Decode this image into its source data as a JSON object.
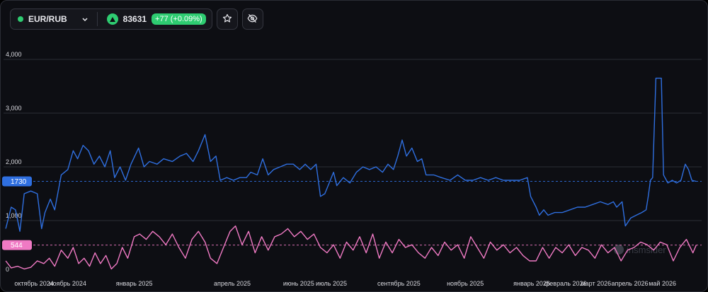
{
  "header": {
    "symbol": "EUR/RUB",
    "price": "83631",
    "change": "+77 (+0.09%)"
  },
  "watermark": "insmsider",
  "icons": [
    "chevron-down-icon",
    "arrow-up-icon",
    "star-icon",
    "eye-off-icon"
  ],
  "colors": {
    "series_blue": "#2f6fe0",
    "series_pink": "#f07ac4",
    "up_green": "#2ecc71",
    "background": "#0d0e13",
    "grid": "#2b2d36"
  },
  "chart_data": {
    "type": "line",
    "ylim": [
      0,
      4500
    ],
    "yticks": [
      "0",
      "1,000",
      "2,000",
      "3,000",
      "4,000"
    ],
    "ytick_values": [
      0,
      1000,
      2000,
      3000,
      4000
    ],
    "xlim": [
      "2024-09-03",
      "2026-06-06"
    ],
    "xticks": [
      {
        "label": "октябрь 2024",
        "date": "2024-10-01"
      },
      {
        "label": "ноябрь 2024",
        "date": "2024-11-01"
      },
      {
        "label": "январь 2025",
        "date": "2025-01-01"
      },
      {
        "label": "апрель 2025",
        "date": "2025-04-01"
      },
      {
        "label": "июнь 2025",
        "date": "2025-06-01"
      },
      {
        "label": "июль 2025",
        "date": "2025-07-01"
      },
      {
        "label": "сентябрь 2025",
        "date": "2025-09-01"
      },
      {
        "label": "ноябрь 2025",
        "date": "2025-11-01"
      },
      {
        "label": "январь 2026",
        "date": "2026-01-01"
      },
      {
        "label": "февраль 2026",
        "date": "2026-02-01"
      },
      {
        "label": "март 2026",
        "date": "2026-03-01"
      },
      {
        "label": "апрель 2026",
        "date": "2026-04-01"
      },
      {
        "label": "май 2026",
        "date": "2026-05-01"
      }
    ],
    "grid": true,
    "series": [
      {
        "color": "#2f6fe0",
        "last_value": 1730,
        "last_label": "1730",
        "points": [
          [
            "2024-09-05",
            850
          ],
          [
            "2024-09-10",
            1250
          ],
          [
            "2024-09-14",
            1200
          ],
          [
            "2024-09-18",
            800
          ],
          [
            "2024-09-22",
            1500
          ],
          [
            "2024-09-28",
            1550
          ],
          [
            "2024-10-04",
            1500
          ],
          [
            "2024-10-08",
            850
          ],
          [
            "2024-10-11",
            1150
          ],
          [
            "2024-10-16",
            1400
          ],
          [
            "2024-10-20",
            1200
          ],
          [
            "2024-10-26",
            1850
          ],
          [
            "2024-11-01",
            1950
          ],
          [
            "2024-11-06",
            2300
          ],
          [
            "2024-11-10",
            2150
          ],
          [
            "2024-11-15",
            2400
          ],
          [
            "2024-11-20",
            2300
          ],
          [
            "2024-11-25",
            2050
          ],
          [
            "2024-11-30",
            2200
          ],
          [
            "2024-12-05",
            2000
          ],
          [
            "2024-12-10",
            2300
          ],
          [
            "2024-12-14",
            1800
          ],
          [
            "2024-12-19",
            2000
          ],
          [
            "2024-12-24",
            1750
          ],
          [
            "2024-12-29",
            2050
          ],
          [
            "2025-01-05",
            2350
          ],
          [
            "2025-01-10",
            2000
          ],
          [
            "2025-01-15",
            2100
          ],
          [
            "2025-01-22",
            2050
          ],
          [
            "2025-01-28",
            2150
          ],
          [
            "2025-02-05",
            2100
          ],
          [
            "2025-02-12",
            2200
          ],
          [
            "2025-02-18",
            2250
          ],
          [
            "2025-02-24",
            2100
          ],
          [
            "2025-03-01",
            2300
          ],
          [
            "2025-03-07",
            2600
          ],
          [
            "2025-03-12",
            2100
          ],
          [
            "2025-03-17",
            2200
          ],
          [
            "2025-03-21",
            1750
          ],
          [
            "2025-03-27",
            1800
          ],
          [
            "2025-04-02",
            1750
          ],
          [
            "2025-04-08",
            1800
          ],
          [
            "2025-04-14",
            1800
          ],
          [
            "2025-04-18",
            1900
          ],
          [
            "2025-04-24",
            1850
          ],
          [
            "2025-04-29",
            2150
          ],
          [
            "2025-05-04",
            1850
          ],
          [
            "2025-05-09",
            1950
          ],
          [
            "2025-05-15",
            2000
          ],
          [
            "2025-05-21",
            2050
          ],
          [
            "2025-05-27",
            2050
          ],
          [
            "2025-06-02",
            1950
          ],
          [
            "2025-06-07",
            2050
          ],
          [
            "2025-06-12",
            1950
          ],
          [
            "2025-06-17",
            2050
          ],
          [
            "2025-06-21",
            1450
          ],
          [
            "2025-06-25",
            1500
          ],
          [
            "2025-06-30",
            1750
          ],
          [
            "2025-07-03",
            1900
          ],
          [
            "2025-07-06",
            1650
          ],
          [
            "2025-07-12",
            1800
          ],
          [
            "2025-07-18",
            1700
          ],
          [
            "2025-07-24",
            1900
          ],
          [
            "2025-07-30",
            2000
          ],
          [
            "2025-08-05",
            1950
          ],
          [
            "2025-08-11",
            2000
          ],
          [
            "2025-08-17",
            1900
          ],
          [
            "2025-08-22",
            2050
          ],
          [
            "2025-08-27",
            1950
          ],
          [
            "2025-08-31",
            2200
          ],
          [
            "2025-09-04",
            2500
          ],
          [
            "2025-09-08",
            2200
          ],
          [
            "2025-09-13",
            2350
          ],
          [
            "2025-09-18",
            2100
          ],
          [
            "2025-09-22",
            2150
          ],
          [
            "2025-09-26",
            1850
          ],
          [
            "2025-10-03",
            1850
          ],
          [
            "2025-10-10",
            1800
          ],
          [
            "2025-10-18",
            1750
          ],
          [
            "2025-10-25",
            1850
          ],
          [
            "2025-11-01",
            1750
          ],
          [
            "2025-11-08",
            1750
          ],
          [
            "2025-11-15",
            1800
          ],
          [
            "2025-11-22",
            1750
          ],
          [
            "2025-11-29",
            1800
          ],
          [
            "2025-12-06",
            1750
          ],
          [
            "2025-12-14",
            1750
          ],
          [
            "2025-12-21",
            1750
          ],
          [
            "2025-12-28",
            1800
          ],
          [
            "2025-12-31",
            1450
          ],
          [
            "2026-01-05",
            1250
          ],
          [
            "2026-01-08",
            1100
          ],
          [
            "2026-01-12",
            1200
          ],
          [
            "2026-01-16",
            1100
          ],
          [
            "2026-01-22",
            1150
          ],
          [
            "2026-01-29",
            1150
          ],
          [
            "2026-02-05",
            1200
          ],
          [
            "2026-02-12",
            1250
          ],
          [
            "2026-02-19",
            1250
          ],
          [
            "2026-02-26",
            1300
          ],
          [
            "2026-03-05",
            1350
          ],
          [
            "2026-03-12",
            1300
          ],
          [
            "2026-03-17",
            1350
          ],
          [
            "2026-03-20",
            1250
          ],
          [
            "2026-03-25",
            1350
          ],
          [
            "2026-03-28",
            900
          ],
          [
            "2026-04-02",
            1050
          ],
          [
            "2026-04-07",
            1100
          ],
          [
            "2026-04-12",
            1150
          ],
          [
            "2026-04-16",
            1200
          ],
          [
            "2026-04-18",
            1450
          ],
          [
            "2026-04-20",
            1750
          ],
          [
            "2026-04-22",
            1800
          ],
          [
            "2026-04-25",
            3650
          ],
          [
            "2026-04-30",
            3650
          ],
          [
            "2026-05-02",
            1850
          ],
          [
            "2026-05-06",
            1700
          ],
          [
            "2026-05-10",
            1750
          ],
          [
            "2026-05-14",
            1700
          ],
          [
            "2026-05-18",
            1750
          ],
          [
            "2026-05-22",
            2050
          ],
          [
            "2026-05-25",
            1950
          ],
          [
            "2026-05-28",
            1750
          ],
          [
            "2026-06-01",
            1730
          ]
        ]
      },
      {
        "color": "#f07ac4",
        "last_value": 544,
        "last_label": "544",
        "points": [
          [
            "2024-09-05",
            250
          ],
          [
            "2024-09-10",
            120
          ],
          [
            "2024-09-16",
            150
          ],
          [
            "2024-09-22",
            100
          ],
          [
            "2024-09-28",
            130
          ],
          [
            "2024-10-04",
            250
          ],
          [
            "2024-10-10",
            200
          ],
          [
            "2024-10-15",
            300
          ],
          [
            "2024-10-20",
            150
          ],
          [
            "2024-10-26",
            450
          ],
          [
            "2024-11-01",
            300
          ],
          [
            "2024-11-06",
            500
          ],
          [
            "2024-11-11",
            200
          ],
          [
            "2024-11-16",
            300
          ],
          [
            "2024-11-21",
            150
          ],
          [
            "2024-11-26",
            400
          ],
          [
            "2024-12-01",
            200
          ],
          [
            "2024-12-06",
            350
          ],
          [
            "2024-12-11",
            100
          ],
          [
            "2024-12-16",
            200
          ],
          [
            "2024-12-21",
            500
          ],
          [
            "2024-12-26",
            300
          ],
          [
            "2025-01-01",
            700
          ],
          [
            "2025-01-06",
            750
          ],
          [
            "2025-01-12",
            650
          ],
          [
            "2025-01-18",
            800
          ],
          [
            "2025-01-24",
            700
          ],
          [
            "2025-01-30",
            550
          ],
          [
            "2025-02-05",
            750
          ],
          [
            "2025-02-11",
            500
          ],
          [
            "2025-02-17",
            300
          ],
          [
            "2025-02-23",
            650
          ],
          [
            "2025-03-01",
            800
          ],
          [
            "2025-03-07",
            600
          ],
          [
            "2025-03-12",
            300
          ],
          [
            "2025-03-18",
            200
          ],
          [
            "2025-03-24",
            500
          ],
          [
            "2025-03-30",
            800
          ],
          [
            "2025-04-04",
            900
          ],
          [
            "2025-04-10",
            550
          ],
          [
            "2025-04-16",
            800
          ],
          [
            "2025-04-22",
            400
          ],
          [
            "2025-04-28",
            700
          ],
          [
            "2025-05-04",
            450
          ],
          [
            "2025-05-10",
            700
          ],
          [
            "2025-05-16",
            750
          ],
          [
            "2025-05-22",
            850
          ],
          [
            "2025-05-28",
            700
          ],
          [
            "2025-06-03",
            800
          ],
          [
            "2025-06-09",
            650
          ],
          [
            "2025-06-15",
            750
          ],
          [
            "2025-06-21",
            500
          ],
          [
            "2025-06-27",
            400
          ],
          [
            "2025-07-03",
            550
          ],
          [
            "2025-07-09",
            300
          ],
          [
            "2025-07-15",
            600
          ],
          [
            "2025-07-21",
            450
          ],
          [
            "2025-07-27",
            700
          ],
          [
            "2025-08-02",
            400
          ],
          [
            "2025-08-08",
            750
          ],
          [
            "2025-08-14",
            300
          ],
          [
            "2025-08-20",
            600
          ],
          [
            "2025-08-26",
            400
          ],
          [
            "2025-09-01",
            650
          ],
          [
            "2025-09-07",
            500
          ],
          [
            "2025-09-13",
            550
          ],
          [
            "2025-09-19",
            400
          ],
          [
            "2025-09-25",
            300
          ],
          [
            "2025-10-01",
            500
          ],
          [
            "2025-10-07",
            350
          ],
          [
            "2025-10-13",
            600
          ],
          [
            "2025-10-19",
            450
          ],
          [
            "2025-10-25",
            550
          ],
          [
            "2025-10-31",
            300
          ],
          [
            "2025-11-06",
            700
          ],
          [
            "2025-11-12",
            500
          ],
          [
            "2025-11-18",
            300
          ],
          [
            "2025-11-24",
            600
          ],
          [
            "2025-11-30",
            450
          ],
          [
            "2025-12-06",
            550
          ],
          [
            "2025-12-12",
            400
          ],
          [
            "2025-12-18",
            500
          ],
          [
            "2025-12-24",
            350
          ],
          [
            "2025-12-30",
            250
          ],
          [
            "2026-01-05",
            250
          ],
          [
            "2026-01-11",
            500
          ],
          [
            "2026-01-17",
            300
          ],
          [
            "2026-01-23",
            500
          ],
          [
            "2026-01-29",
            400
          ],
          [
            "2026-02-04",
            550
          ],
          [
            "2026-02-10",
            350
          ],
          [
            "2026-02-16",
            500
          ],
          [
            "2026-02-22",
            450
          ],
          [
            "2026-02-28",
            300
          ],
          [
            "2026-03-06",
            550
          ],
          [
            "2026-03-12",
            400
          ],
          [
            "2026-03-18",
            500
          ],
          [
            "2026-03-24",
            250
          ],
          [
            "2026-03-30",
            450
          ],
          [
            "2026-04-05",
            500
          ],
          [
            "2026-04-11",
            600
          ],
          [
            "2026-04-17",
            550
          ],
          [
            "2026-04-23",
            450
          ],
          [
            "2026-04-29",
            600
          ],
          [
            "2026-05-05",
            550
          ],
          [
            "2026-05-11",
            250
          ],
          [
            "2026-05-17",
            500
          ],
          [
            "2026-05-23",
            650
          ],
          [
            "2026-05-29",
            400
          ],
          [
            "2026-06-01",
            544
          ]
        ]
      }
    ]
  }
}
